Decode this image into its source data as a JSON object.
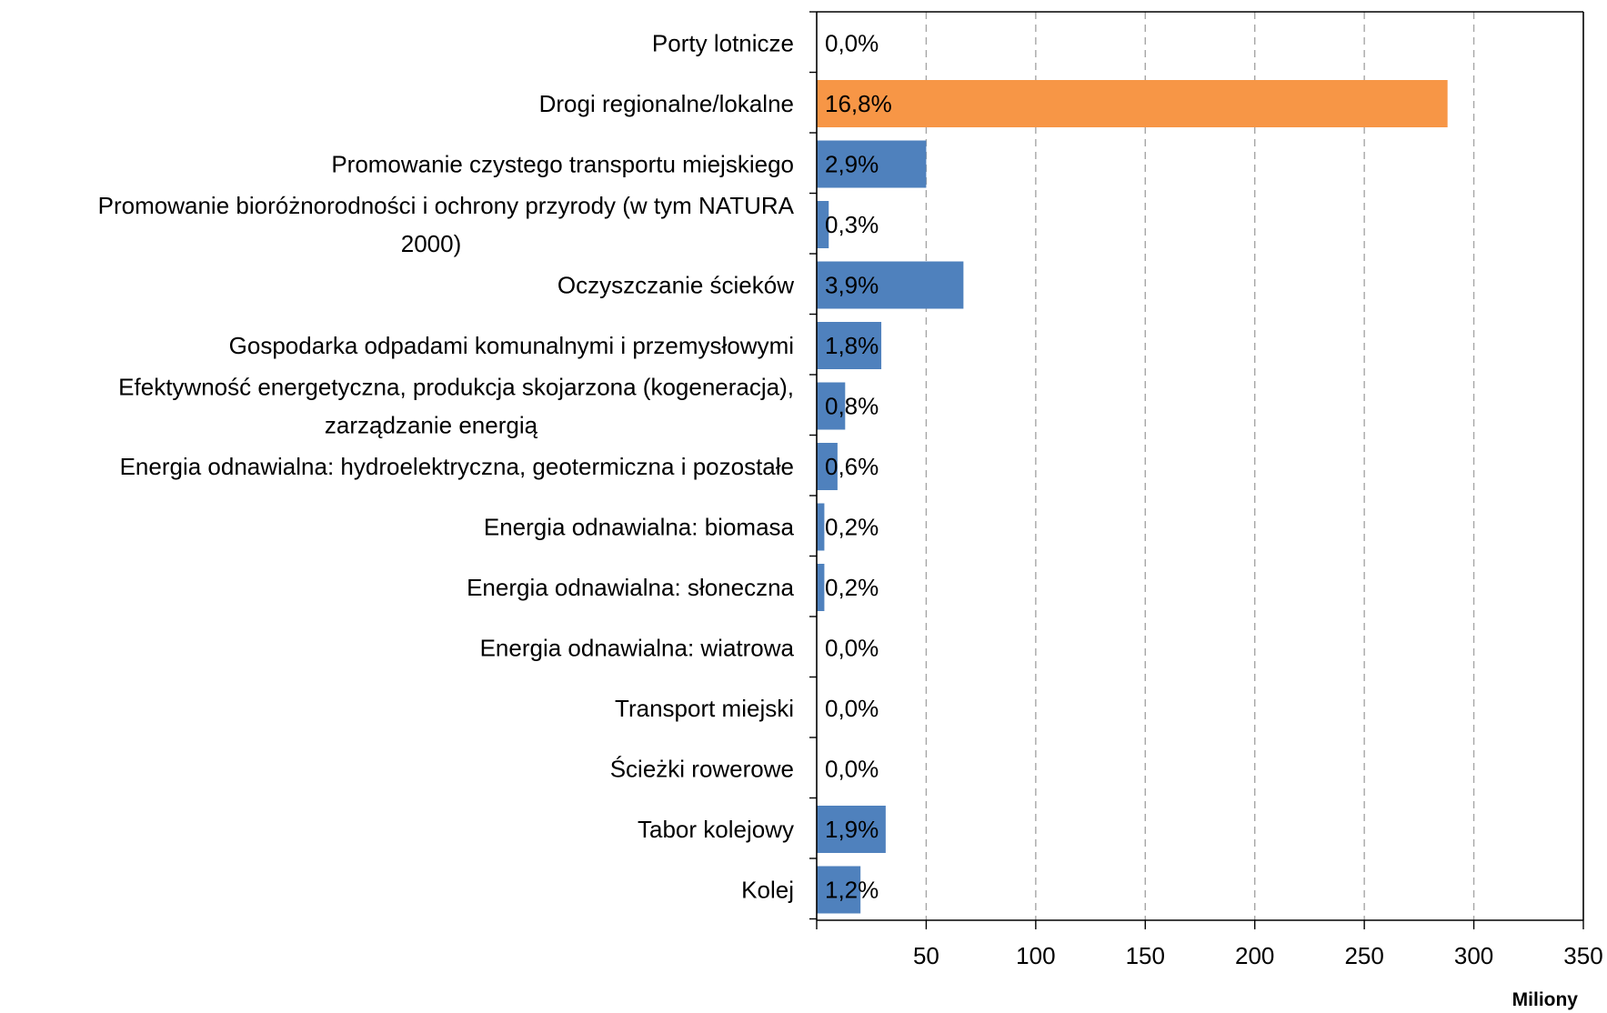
{
  "chart_data": {
    "type": "bar",
    "orientation": "horizontal",
    "categories": [
      "Porty lotnicze",
      "Drogi regionalne/lokalne",
      "Promowanie czystego transportu miejskiego",
      "Promowanie bioróżnorodności i ochrony przyrody (w tym NATURA 2000)",
      "Oczyszczanie ścieków",
      "Gospodarka odpadami komunalnymi i przemysłowymi",
      "Efektywność energetyczna, produkcja skojarzona (kogeneracja), zarządzanie energią",
      "Energia odnawialna: hydroelektryczna, geotermiczna i pozostałe",
      "Energia odnawialna: biomasa",
      "Energia odnawialna: słoneczna",
      "Energia odnawialna: wiatrowa",
      "Transport miejski",
      "Ścieżki rowerowe",
      "Tabor kolejowy",
      "Kolej"
    ],
    "category_lines": [
      [
        "Porty lotnicze"
      ],
      [
        "Drogi regionalne/lokalne"
      ],
      [
        "Promowanie czystego transportu miejskiego"
      ],
      [
        "Promowanie bioróżnorodności i ochrony przyrody (w tym NATURA",
        "2000)"
      ],
      [
        "Oczyszczanie ścieków"
      ],
      [
        "Gospodarka odpadami komunalnymi i przemysłowymi"
      ],
      [
        "Efektywność energetyczna, produkcja skojarzona (kogeneracja),",
        "zarządzanie energią"
      ],
      [
        "Energia odnawialna: hydroelektryczna, geotermiczna i pozostałe"
      ],
      [
        "Energia odnawialna: biomasa"
      ],
      [
        "Energia odnawialna: słoneczna"
      ],
      [
        "Energia odnawialna: wiatrowa"
      ],
      [
        "Transport miejski"
      ],
      [
        "Ścieżki rowerowe"
      ],
      [
        "Tabor kolejowy"
      ],
      [
        "Kolej"
      ]
    ],
    "values": [
      0,
      288,
      50,
      5.5,
      67,
      29.5,
      13,
      9.5,
      3.5,
      3.5,
      0,
      0,
      0,
      31.5,
      20
    ],
    "data_labels": [
      "0,0%",
      "16,8%",
      "2,9%",
      "0,3%",
      "3,9%",
      "1,8%",
      "0,8%",
      "0,6%",
      "0,2%",
      "0,2%",
      "0,0%",
      "0,0%",
      "0,0%",
      "1,9%",
      "1,2%"
    ],
    "highlight_index": 1,
    "colors": {
      "bar": "#4f81bd",
      "highlight": "#f79646",
      "grid": "#a6a6a6",
      "axis": "#000000"
    },
    "xlim": [
      0,
      350
    ],
    "xticks": [
      0,
      50,
      100,
      150,
      200,
      250,
      300,
      350
    ],
    "xtick_labels": [
      "",
      "50",
      "100",
      "150",
      "200",
      "250",
      "300",
      "350"
    ],
    "xlabel": "Miliony",
    "ylabel": "",
    "title": "",
    "grid": "vertical dashed",
    "legend": "none"
  }
}
